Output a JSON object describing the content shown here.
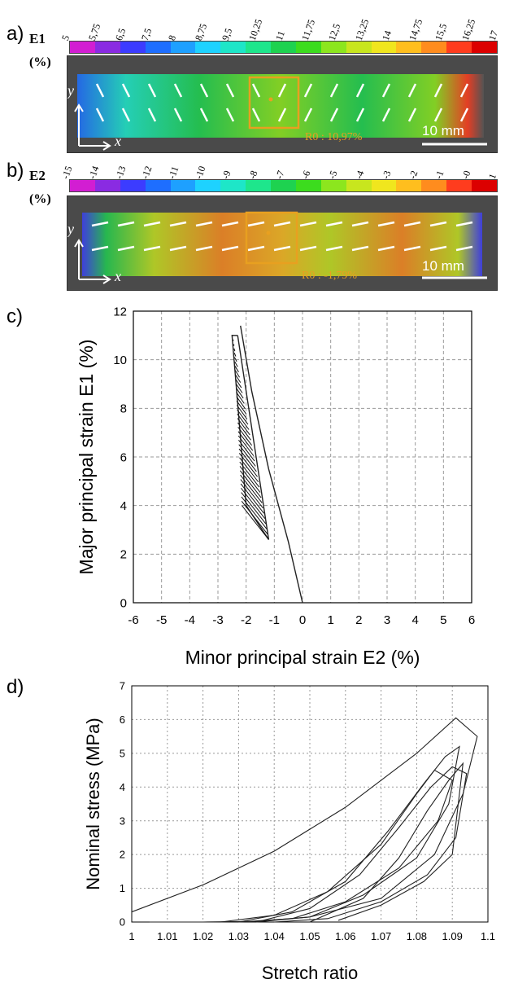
{
  "panels": {
    "a": {
      "letter": "a)",
      "field": "E1",
      "unit": "(%)",
      "ticks": [
        "5",
        "5,75",
        "6,5",
        "7,5",
        "8",
        "8,75",
        "9,5",
        "10,25",
        "11",
        "11,75",
        "12,5",
        "13,25",
        "14",
        "14,75",
        "15,5",
        "16,25",
        "17"
      ],
      "roi_label": "R0 : 10,97%",
      "scale_label": "10 mm",
      "axis_y": "y",
      "axis_x": "x"
    },
    "b": {
      "letter": "b)",
      "field": "E2",
      "unit": "(%)",
      "ticks": [
        "-15",
        "-14",
        "-13",
        "-12",
        "-11",
        "-10",
        "-9",
        "-8",
        "-7",
        "-6",
        "-5",
        "-4",
        "-3",
        "-2",
        "-1",
        "-0",
        "1"
      ],
      "roi_label": "R0 : -1,79%",
      "scale_label": "10 mm",
      "axis_y": "y",
      "axis_x": "x"
    },
    "c": {
      "letter": "c)"
    },
    "d": {
      "letter": "d)"
    }
  },
  "colors": {
    "colormap": [
      "#d21ed2",
      "#8a2be2",
      "#3c3cff",
      "#1e6eff",
      "#1ea0ff",
      "#1ed2ff",
      "#1ee6c8",
      "#1ee68c",
      "#1ed250",
      "#3cdc1e",
      "#8ce61e",
      "#c8e61e",
      "#f0e61e",
      "#ffbe1e",
      "#ff8c1e",
      "#ff3c1e",
      "#dc0000"
    ],
    "roi_box": "#e8a020"
  },
  "chart_data": [
    {
      "type": "line",
      "xlabel": "Minor principal strain E2 (%)",
      "ylabel": "Major principal strain E1 (%)",
      "xlim": [
        -6,
        6
      ],
      "ylim": [
        0,
        12
      ],
      "xticks": [
        -6,
        -5,
        -4,
        -3,
        -2,
        -1,
        0,
        1,
        2,
        3,
        4,
        5,
        6
      ],
      "yticks": [
        0,
        2,
        4,
        6,
        8,
        10,
        12
      ],
      "grid": true,
      "series": [
        {
          "x": [
            0,
            -0.5,
            -1.2,
            -1.8,
            -2.2
          ],
          "y": [
            0,
            2.5,
            5.5,
            8.7,
            11.4
          ]
        },
        {
          "x": [
            -2.3,
            -1.2,
            -2.0,
            -2.5,
            -2.3
          ],
          "y": [
            11.0,
            2.6,
            4.0,
            11.0,
            11.0
          ]
        }
      ]
    },
    {
      "type": "line",
      "xlabel": "Stretch ratio",
      "ylabel": "Nominal stress (MPa)",
      "xlim": [
        1,
        1.1
      ],
      "ylim": [
        0,
        7
      ],
      "xticks": [
        1,
        1.01,
        1.02,
        1.03,
        1.04,
        1.05,
        1.06,
        1.07,
        1.08,
        1.09,
        1.1
      ],
      "yticks": [
        0,
        1,
        2,
        3,
        4,
        5,
        6,
        7
      ],
      "grid": true,
      "series": [
        {
          "x": [
            1.0,
            1.02,
            1.04,
            1.06,
            1.08,
            1.091,
            1.097,
            1.093,
            1.085,
            1.07,
            1.05,
            1.035,
            1.02,
            1.005
          ],
          "y": [
            0.3,
            1.1,
            2.1,
            3.4,
            5.0,
            6.05,
            5.5,
            3.8,
            2.0,
            0.7,
            0.15,
            0.02,
            0.0,
            0.0
          ]
        },
        {
          "x": [
            1.025,
            1.04,
            1.055,
            1.07,
            1.08,
            1.085,
            1.09,
            1.086,
            1.075,
            1.06,
            1.045,
            1.03
          ],
          "y": [
            0.0,
            0.2,
            0.9,
            2.3,
            3.8,
            4.5,
            4.2,
            3.0,
            1.6,
            0.6,
            0.1,
            0.0
          ]
        },
        {
          "x": [
            1.03,
            1.045,
            1.06,
            1.072,
            1.082,
            1.088,
            1.092,
            1.089,
            1.08,
            1.065,
            1.05,
            1.035
          ],
          "y": [
            0.0,
            0.3,
            1.2,
            2.7,
            4.1,
            4.9,
            5.2,
            3.5,
            1.9,
            0.8,
            0.15,
            0.0
          ]
        },
        {
          "x": [
            1.035,
            1.05,
            1.064,
            1.075,
            1.084,
            1.09,
            1.094,
            1.091,
            1.083,
            1.07,
            1.055,
            1.04
          ],
          "y": [
            0.0,
            0.4,
            1.4,
            2.8,
            4.0,
            4.6,
            4.4,
            2.5,
            1.4,
            0.6,
            0.1,
            0.0
          ]
        },
        {
          "x": [
            1.05,
            1.065,
            1.075,
            1.083,
            1.089,
            1.093,
            1.09,
            1.082,
            1.07,
            1.058
          ],
          "y": [
            0.0,
            0.7,
            1.9,
            3.3,
            4.2,
            4.7,
            2.0,
            1.2,
            0.5,
            0.05
          ]
        }
      ]
    }
  ]
}
